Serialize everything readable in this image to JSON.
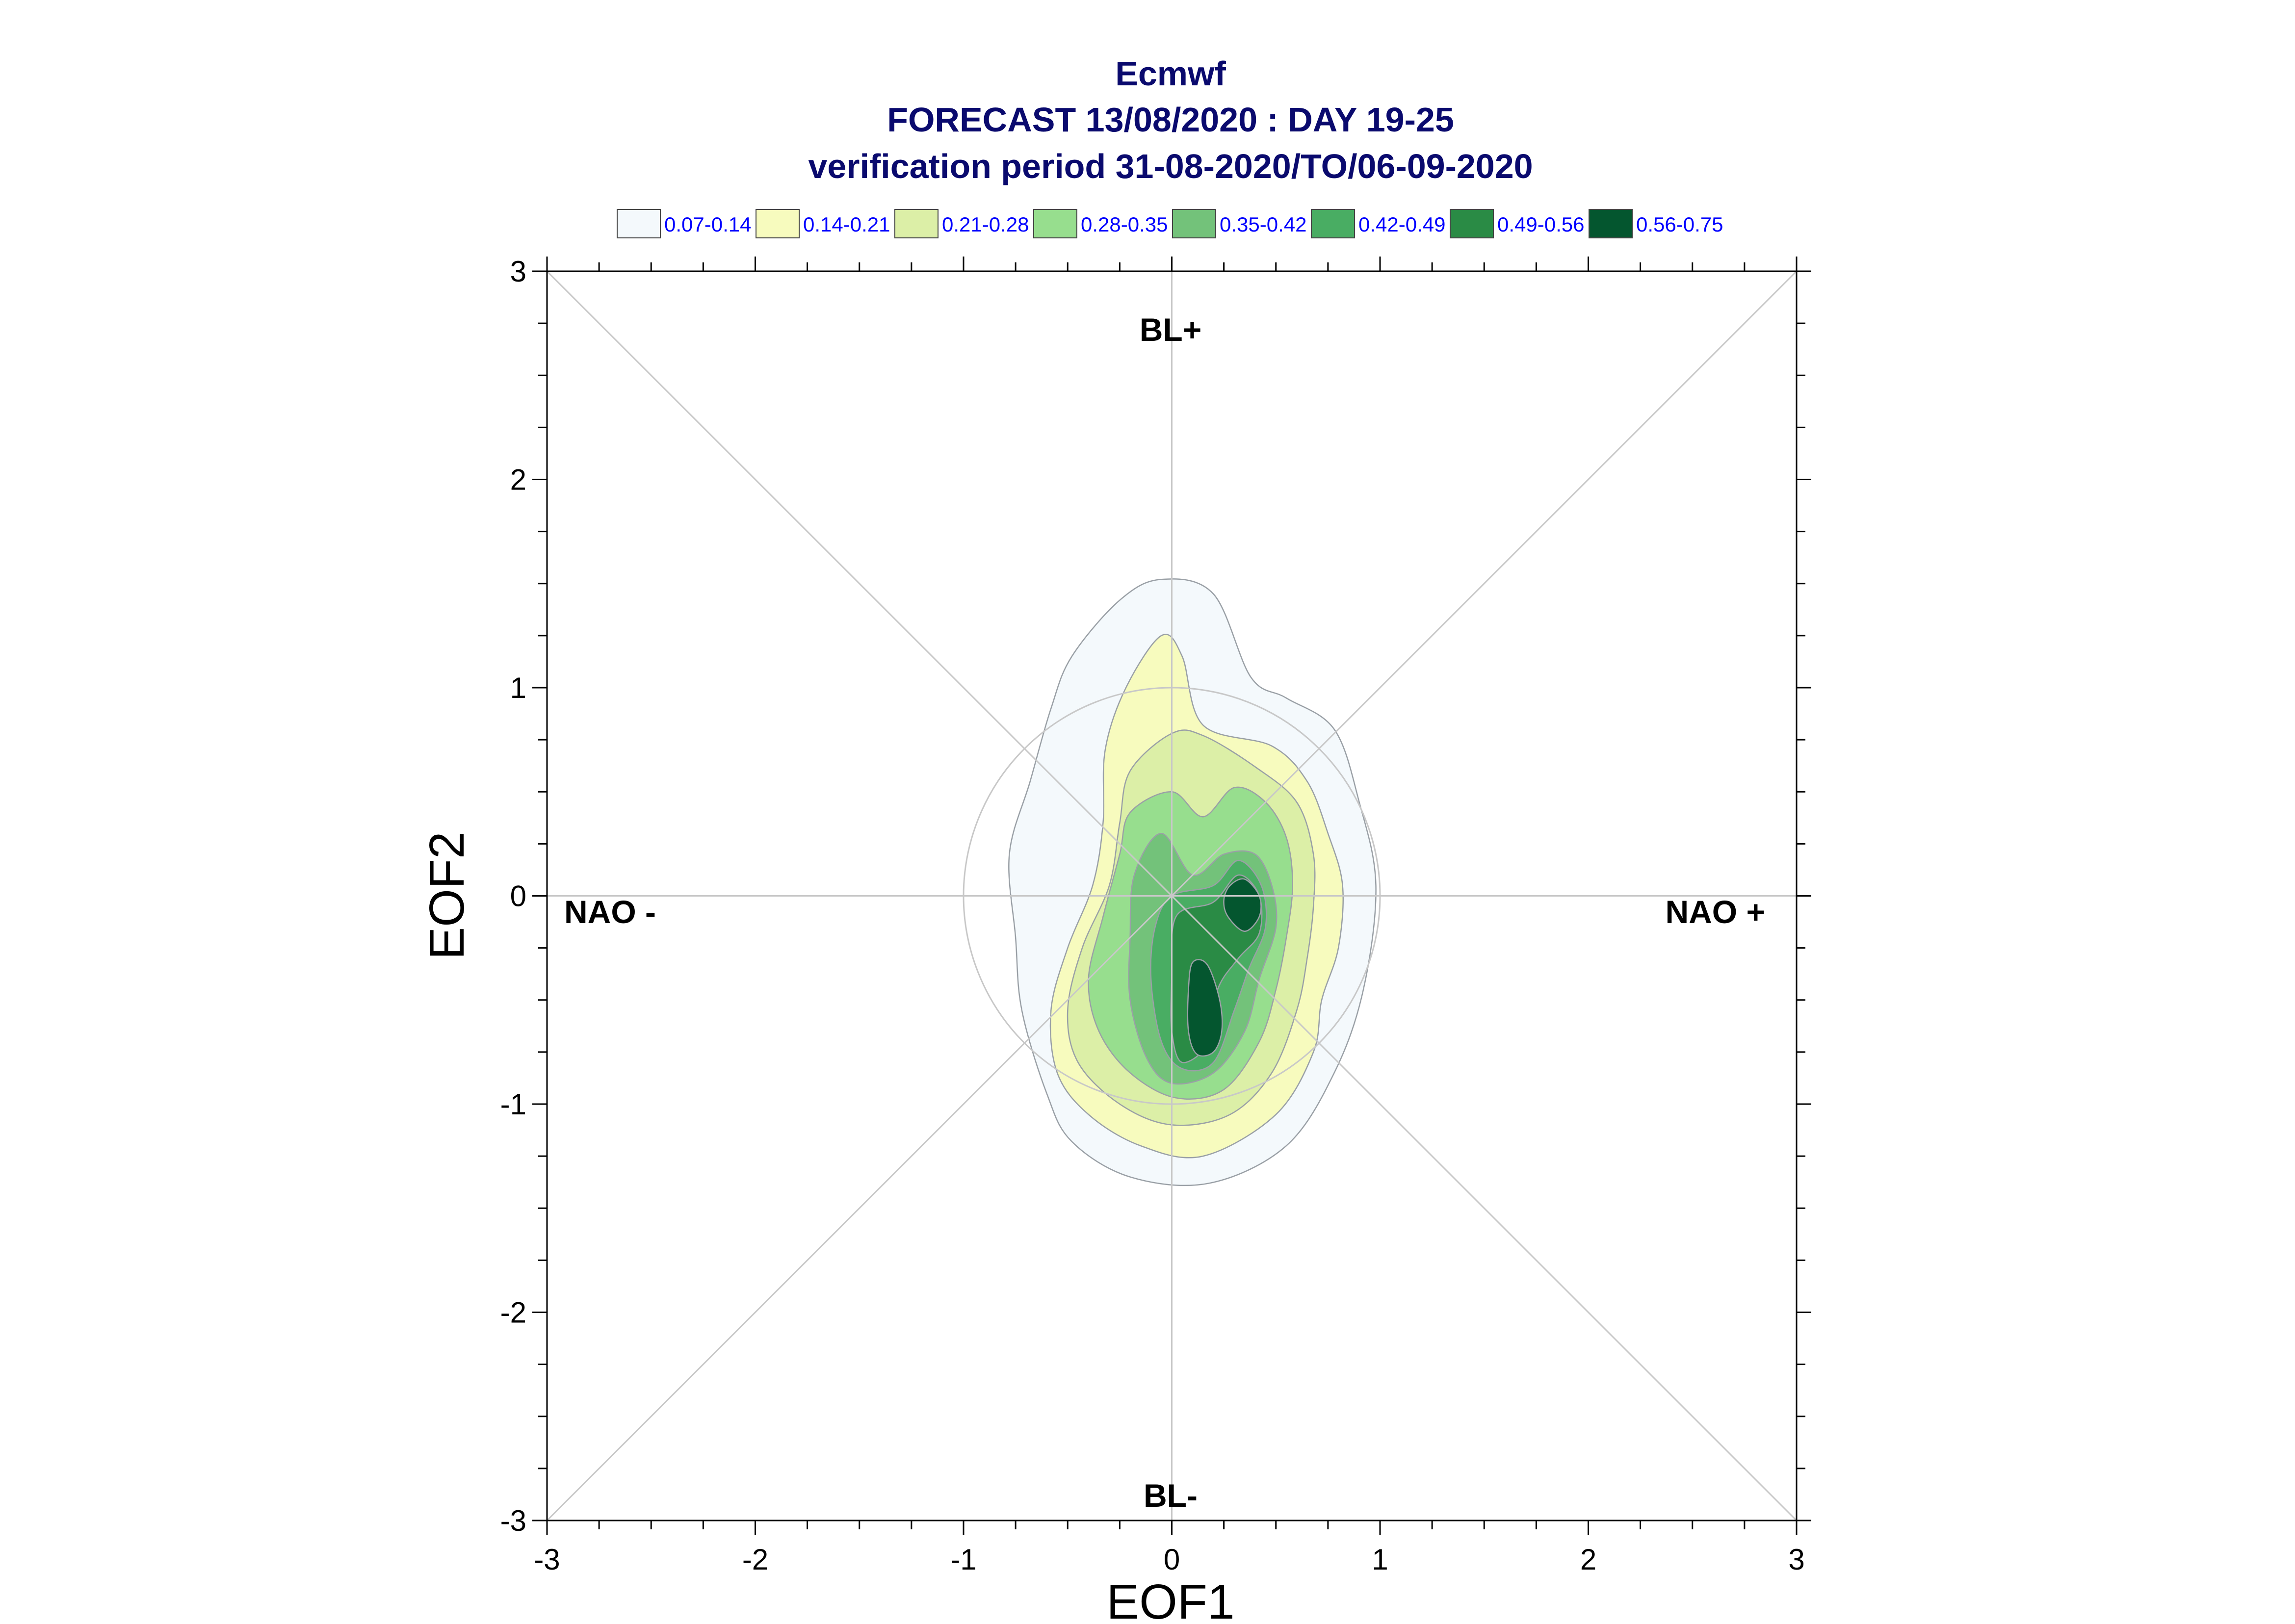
{
  "chart_data": {
    "type": "contour",
    "title": "Ecmwf",
    "subtitle": "FORECAST 13/08/2020 : DAY 19-25",
    "period": "verification period 31-08-2020/TO/06-09-2020",
    "xlabel": "EOF1",
    "ylabel": "EOF2",
    "xlim": [
      -3,
      3
    ],
    "ylim": [
      -3,
      3
    ],
    "xticks": [
      "-3",
      "-2",
      "-1",
      "0",
      "1",
      "2",
      "3"
    ],
    "yticks": [
      "-3",
      "-2",
      "-1",
      "0",
      "1",
      "2",
      "3"
    ],
    "regime_labels": {
      "top": "BL+",
      "bottom": "BL-",
      "left": "NAO -",
      "right": "NAO +"
    },
    "reference_circle_radius": 1.0,
    "legend": [
      {
        "label": "0.07-0.14",
        "color": "#f4f9fc"
      },
      {
        "label": "0.14-0.21",
        "color": "#f7fbbe"
      },
      {
        "label": "0.21-0.28",
        "color": "#dcefa7"
      },
      {
        "label": "0.28-0.35",
        "color": "#97de8e"
      },
      {
        "label": "0.35-0.42",
        "color": "#73c27a"
      },
      {
        "label": "0.42-0.49",
        "color": "#49ad63"
      },
      {
        "label": "0.49-0.56",
        "color": "#2a8b45"
      },
      {
        "label": "0.56-0.75",
        "color": "#04562f"
      }
    ],
    "contours": [
      {
        "level": "0.07-0.14",
        "points": [
          [
            -0.05,
            1.52
          ],
          [
            0.2,
            1.45
          ],
          [
            0.38,
            1.05
          ],
          [
            0.55,
            0.95
          ],
          [
            0.78,
            0.8
          ],
          [
            0.9,
            0.45
          ],
          [
            0.98,
            0.05
          ],
          [
            0.92,
            -0.45
          ],
          [
            0.78,
            -0.85
          ],
          [
            0.55,
            -1.2
          ],
          [
            0.18,
            -1.38
          ],
          [
            -0.2,
            -1.35
          ],
          [
            -0.48,
            -1.18
          ],
          [
            -0.6,
            -0.95
          ],
          [
            -0.72,
            -0.55
          ],
          [
            -0.75,
            -0.2
          ],
          [
            -0.78,
            0.2
          ],
          [
            -0.68,
            0.55
          ],
          [
            -0.58,
            0.9
          ],
          [
            -0.48,
            1.15
          ],
          [
            -0.25,
            1.42
          ]
        ]
      },
      {
        "level": "0.14-0.21",
        "points": [
          [
            -0.05,
            1.25
          ],
          [
            0.05,
            1.15
          ],
          [
            0.15,
            0.82
          ],
          [
            0.48,
            0.72
          ],
          [
            0.65,
            0.55
          ],
          [
            0.75,
            0.3
          ],
          [
            0.82,
            0.05
          ],
          [
            0.8,
            -0.25
          ],
          [
            0.72,
            -0.5
          ],
          [
            0.68,
            -0.75
          ],
          [
            0.5,
            -1.05
          ],
          [
            0.15,
            -1.25
          ],
          [
            -0.15,
            -1.2
          ],
          [
            -0.4,
            -1.05
          ],
          [
            -0.55,
            -0.85
          ],
          [
            -0.58,
            -0.55
          ],
          [
            -0.5,
            -0.25
          ],
          [
            -0.38,
            0.05
          ],
          [
            -0.33,
            0.35
          ],
          [
            -0.32,
            0.7
          ],
          [
            -0.22,
            1.0
          ]
        ]
      },
      {
        "level": "0.21-0.28",
        "points": [
          [
            0.0,
            0.78
          ],
          [
            0.15,
            0.77
          ],
          [
            0.4,
            0.62
          ],
          [
            0.6,
            0.45
          ],
          [
            0.68,
            0.2
          ],
          [
            0.68,
            -0.05
          ],
          [
            0.65,
            -0.3
          ],
          [
            0.6,
            -0.55
          ],
          [
            0.48,
            -0.85
          ],
          [
            0.28,
            -1.05
          ],
          [
            0.0,
            -1.1
          ],
          [
            -0.25,
            -1.0
          ],
          [
            -0.45,
            -0.8
          ],
          [
            -0.5,
            -0.55
          ],
          [
            -0.43,
            -0.25
          ],
          [
            -0.3,
            0.05
          ],
          [
            -0.25,
            0.35
          ],
          [
            -0.2,
            0.6
          ]
        ]
      },
      {
        "level": "0.28-0.35",
        "points": [
          [
            0.0,
            0.5
          ],
          [
            0.15,
            0.38
          ],
          [
            0.3,
            0.52
          ],
          [
            0.45,
            0.45
          ],
          [
            0.55,
            0.28
          ],
          [
            0.58,
            0.05
          ],
          [
            0.55,
            -0.2
          ],
          [
            0.5,
            -0.45
          ],
          [
            0.42,
            -0.7
          ],
          [
            0.25,
            -0.93
          ],
          [
            0.02,
            -0.97
          ],
          [
            -0.2,
            -0.85
          ],
          [
            -0.35,
            -0.65
          ],
          [
            -0.4,
            -0.4
          ],
          [
            -0.33,
            -0.1
          ],
          [
            -0.25,
            0.2
          ],
          [
            -0.2,
            0.4
          ]
        ]
      },
      {
        "level": "0.35-0.42",
        "points": [
          [
            -0.05,
            0.3
          ],
          [
            0.1,
            0.1
          ],
          [
            0.25,
            0.2
          ],
          [
            0.4,
            0.2
          ],
          [
            0.48,
            0.05
          ],
          [
            0.5,
            -0.15
          ],
          [
            0.42,
            -0.4
          ],
          [
            0.35,
            -0.65
          ],
          [
            0.2,
            -0.85
          ],
          [
            0.0,
            -0.9
          ],
          [
            -0.12,
            -0.78
          ],
          [
            -0.2,
            -0.5
          ],
          [
            -0.2,
            -0.2
          ],
          [
            -0.18,
            0.1
          ]
        ]
      },
      {
        "level": "0.42-0.49",
        "points": [
          [
            0.0,
            0.0
          ],
          [
            0.2,
            0.05
          ],
          [
            0.32,
            0.17
          ],
          [
            0.43,
            0.05
          ],
          [
            0.45,
            -0.15
          ],
          [
            0.37,
            -0.35
          ],
          [
            0.3,
            -0.55
          ],
          [
            0.2,
            -0.8
          ],
          [
            0.05,
            -0.83
          ],
          [
            -0.05,
            -0.7
          ],
          [
            -0.1,
            -0.4
          ],
          [
            -0.08,
            -0.15
          ]
        ]
      },
      {
        "level": "0.49-0.56",
        "points": [
          [
            0.02,
            -0.1
          ],
          [
            0.2,
            -0.03
          ],
          [
            0.32,
            0.1
          ],
          [
            0.42,
            0.0
          ],
          [
            0.42,
            -0.18
          ],
          [
            0.32,
            -0.3
          ],
          [
            0.22,
            -0.45
          ],
          [
            0.18,
            -0.7
          ],
          [
            0.05,
            -0.8
          ],
          [
            0.0,
            -0.65
          ],
          [
            0.0,
            -0.4
          ]
        ]
      },
      {
        "level": "0.56-0.75",
        "points": [
          [
            0.28,
            0.05
          ],
          [
            0.35,
            0.08
          ],
          [
            0.42,
            0.0
          ],
          [
            0.42,
            -0.1
          ],
          [
            0.35,
            -0.17
          ],
          [
            0.27,
            -0.1
          ],
          [
            0.25,
            -0.02
          ]
        ]
      },
      {
        "level": "0.56-0.75",
        "points": [
          [
            0.1,
            -0.32
          ],
          [
            0.17,
            -0.33
          ],
          [
            0.23,
            -0.5
          ],
          [
            0.24,
            -0.65
          ],
          [
            0.2,
            -0.75
          ],
          [
            0.12,
            -0.76
          ],
          [
            0.08,
            -0.65
          ],
          [
            0.08,
            -0.45
          ]
        ]
      }
    ]
  }
}
